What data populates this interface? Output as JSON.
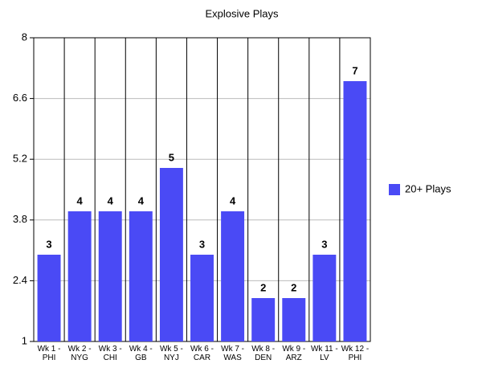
{
  "chart_data": {
    "type": "bar",
    "title": "Explosive Plays",
    "categories": [
      "Wk 1 - PHI",
      "Wk 2 - NYG",
      "Wk 3 - CHI",
      "Wk 4 - GB",
      "Wk 5 - NYJ",
      "Wk 6 - CAR",
      "Wk 7 - WAS",
      "Wk 8 - DEN",
      "Wk 9 - ARZ",
      "Wk 11 - LV",
      "Wk 12 - PHI"
    ],
    "series": [
      {
        "name": "20+ Plays",
        "color": "#4a4af5",
        "values": [
          3,
          4,
          4,
          4,
          5,
          3,
          4,
          2,
          2,
          3,
          7
        ]
      }
    ],
    "ylim": [
      1,
      8
    ],
    "yticks": [
      1,
      2.4,
      3.8,
      5.2,
      6.6,
      8
    ],
    "grid": true,
    "legend": "right"
  }
}
